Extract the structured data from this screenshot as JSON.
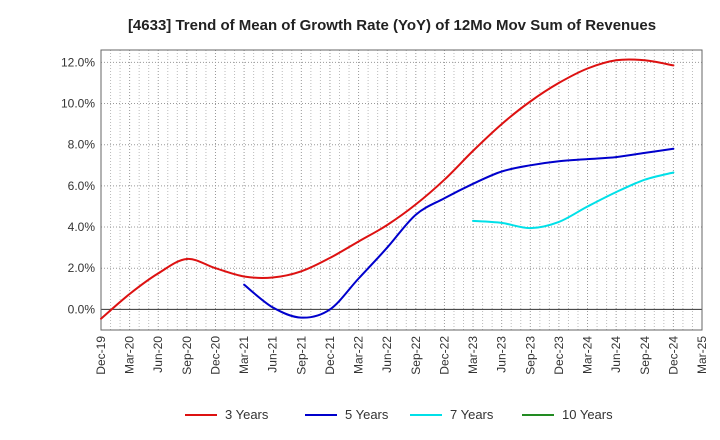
{
  "chart_data": {
    "type": "line",
    "title": "[4633]  Trend of Mean of Growth Rate (YoY) of 12Mo Mov Sum of Revenues",
    "xlabel": "",
    "ylabel": "",
    "x": [
      "Dec-19",
      "Mar-20",
      "Jun-20",
      "Sep-20",
      "Dec-20",
      "Mar-21",
      "Jun-21",
      "Sep-21",
      "Dec-21",
      "Mar-22",
      "Jun-22",
      "Sep-22",
      "Dec-22",
      "Mar-23",
      "Jun-23",
      "Sep-23",
      "Dec-23",
      "Mar-24",
      "Jun-24",
      "Sep-24",
      "Dec-24",
      "Mar-25"
    ],
    "ylim": [
      -1.0,
      12.6
    ],
    "yticks": [
      0,
      2,
      4,
      6,
      8,
      10,
      12
    ],
    "ytick_labels": [
      "0.0%",
      "2.0%",
      "4.0%",
      "6.0%",
      "8.0%",
      "10.0%",
      "12.0%"
    ],
    "grid": true,
    "legend_position": "bottom",
    "series": [
      {
        "name": "3 Years",
        "color": "#dd1111",
        "values": [
          -0.45,
          0.75,
          1.75,
          2.45,
          2.0,
          1.6,
          1.55,
          1.85,
          2.5,
          3.3,
          4.1,
          5.1,
          6.3,
          7.7,
          9.0,
          10.1,
          11.0,
          11.7,
          12.1,
          12.1,
          11.85,
          null
        ]
      },
      {
        "name": "5 Years",
        "color": "#0000cc",
        "values": [
          null,
          null,
          null,
          null,
          null,
          1.2,
          0.1,
          -0.4,
          0.0,
          1.5,
          3.0,
          4.6,
          5.4,
          6.1,
          6.7,
          7.0,
          7.2,
          7.3,
          7.4,
          7.6,
          7.8,
          null
        ]
      },
      {
        "name": "7 Years",
        "color": "#00e0e8",
        "values": [
          null,
          null,
          null,
          null,
          null,
          null,
          null,
          null,
          null,
          null,
          null,
          null,
          null,
          4.3,
          4.2,
          3.95,
          4.25,
          5.0,
          5.7,
          6.3,
          6.65,
          null
        ]
      },
      {
        "name": "10 Years",
        "color": "#228b22",
        "values": [
          null,
          null,
          null,
          null,
          null,
          null,
          null,
          null,
          null,
          null,
          null,
          null,
          null,
          null,
          null,
          null,
          null,
          null,
          null,
          null,
          null,
          null
        ]
      }
    ]
  }
}
